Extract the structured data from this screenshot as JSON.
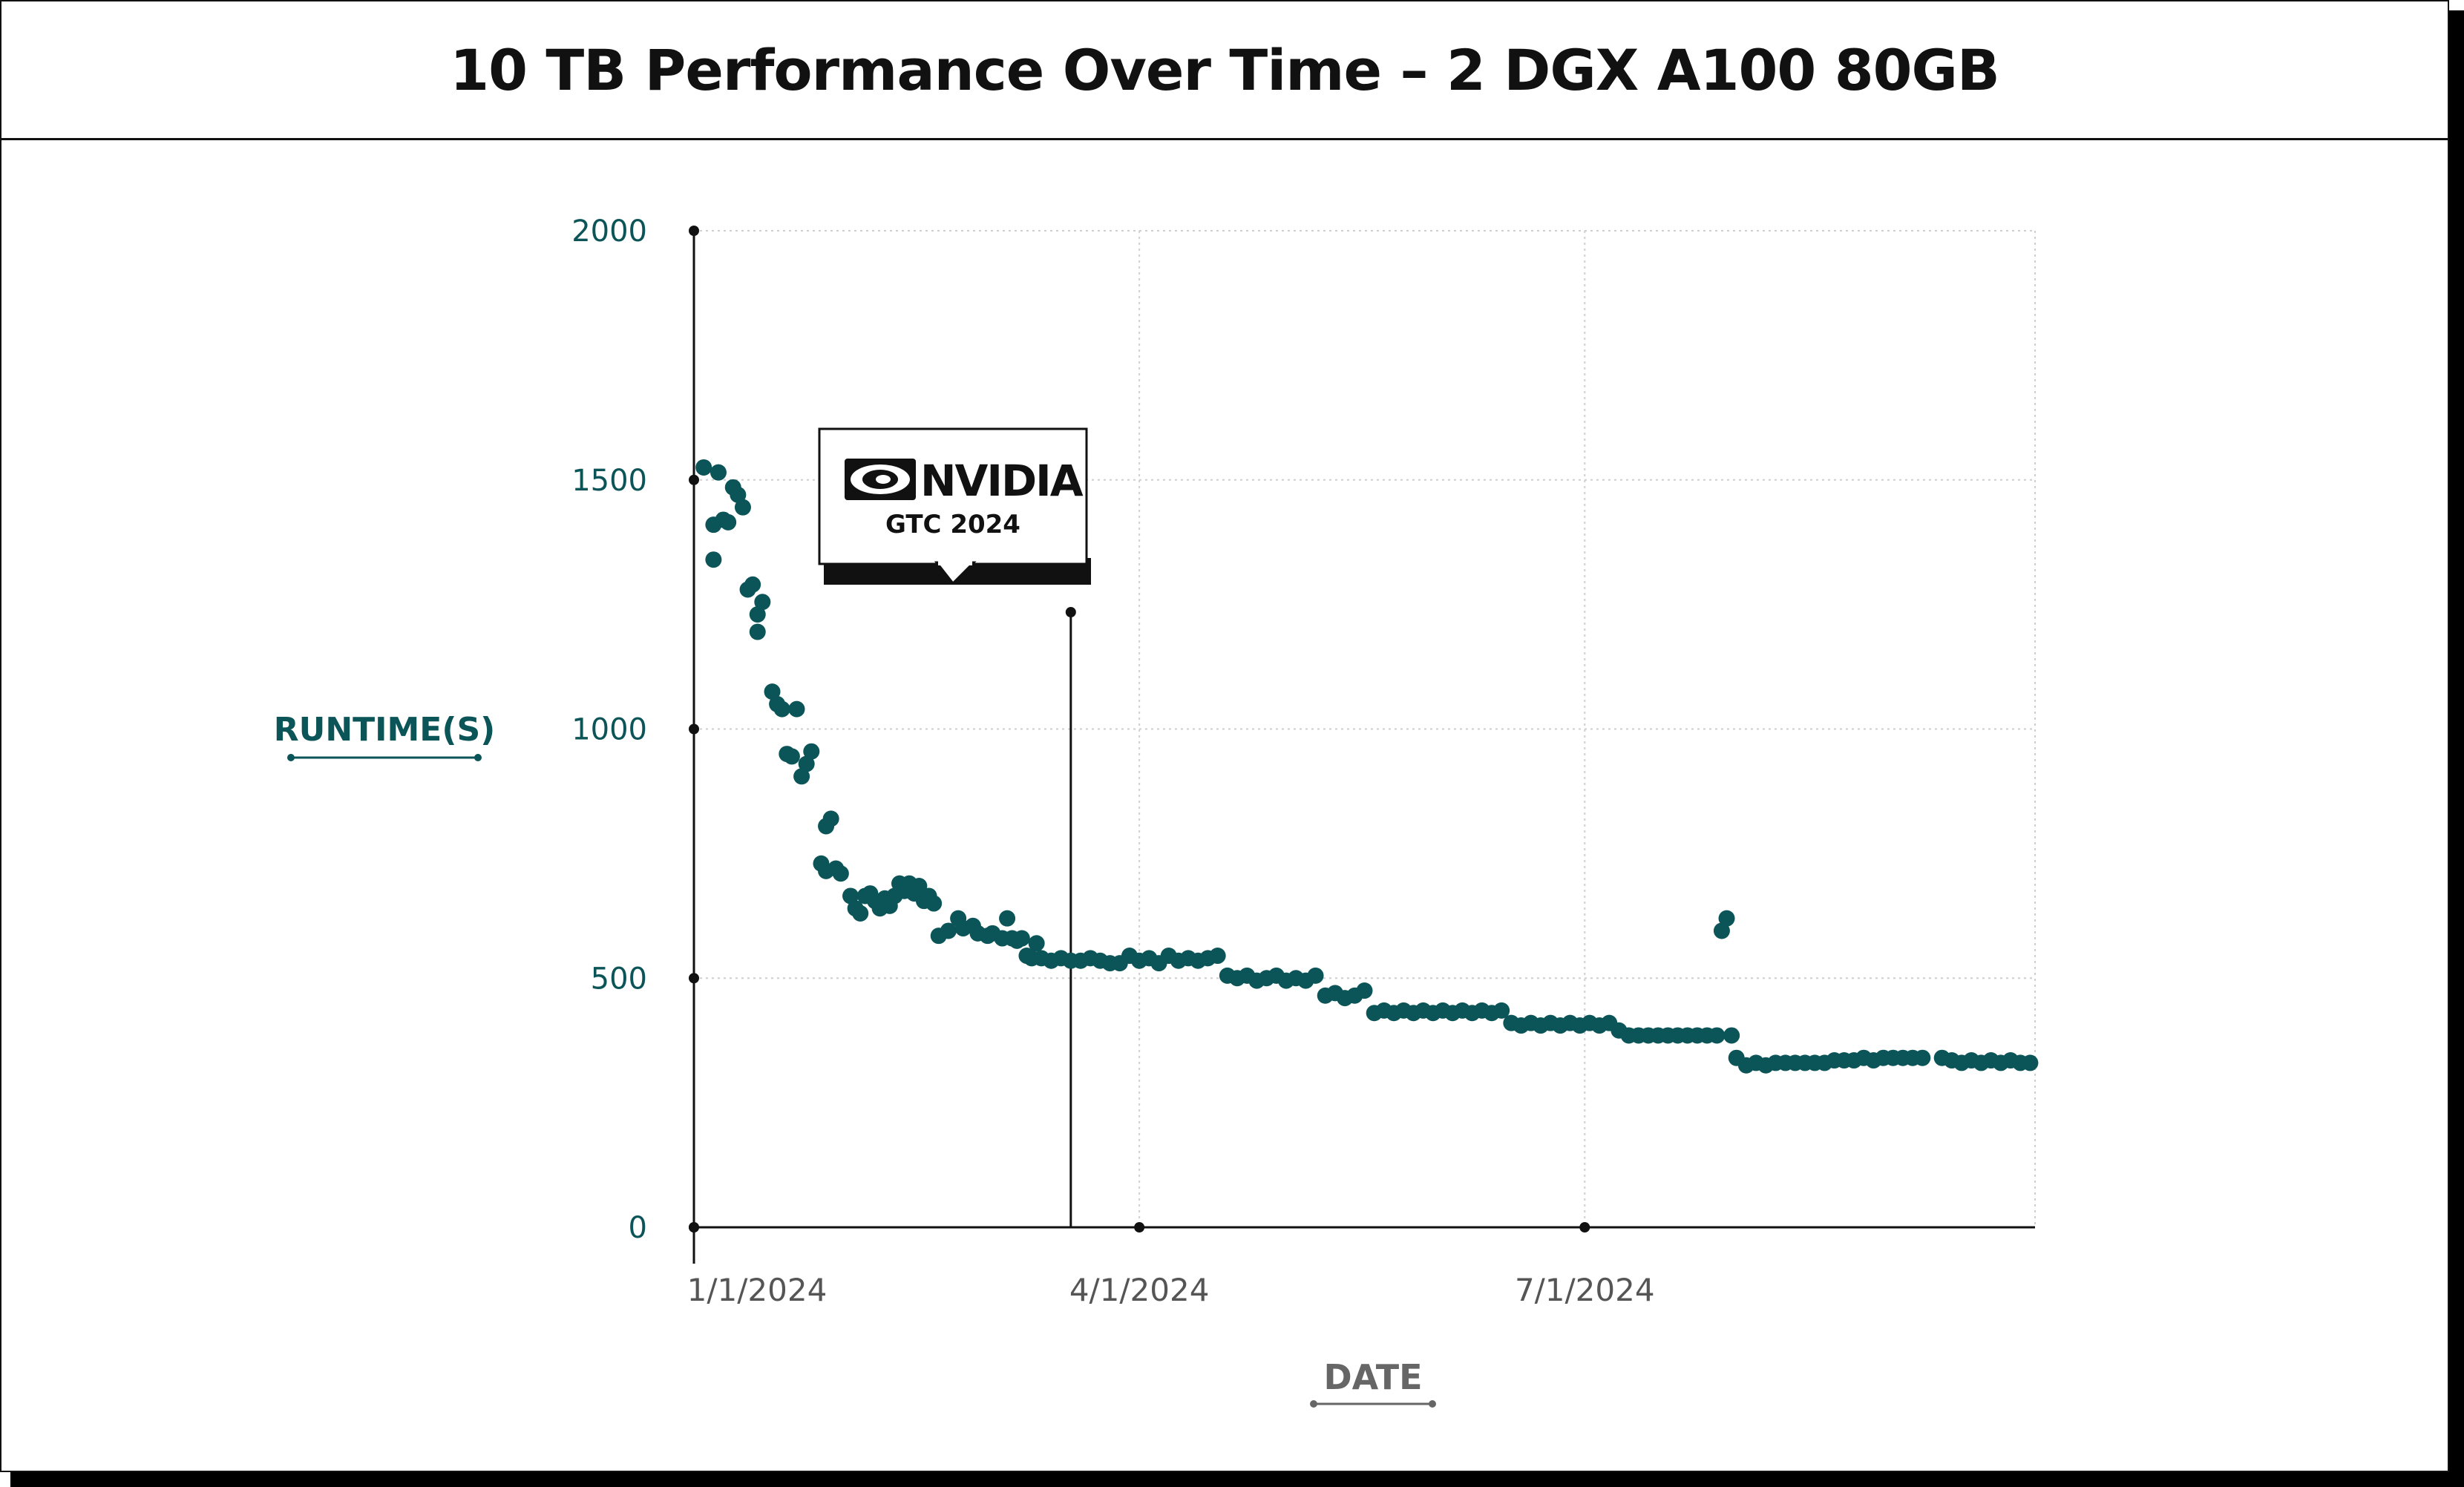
{
  "title": "10 TB Performance Over Time – 2 DGX A100 80GB",
  "annotation": {
    "logo_text": "NVIDIA",
    "event": "GTC 2024",
    "date": "2024-03-18"
  },
  "colors": {
    "series": "#0b5457",
    "axis": "#111111"
  },
  "chart_data": {
    "type": "scatter",
    "title": "10 TB Performance Over Time – 2 DGX A100 80GB",
    "xlabel": "DATE",
    "ylabel": "RUNTIME(S)",
    "xlim": [
      "2024-01-01",
      "2024-10-01"
    ],
    "ylim": [
      0,
      2000
    ],
    "yticks": [
      0,
      500,
      1000,
      1500,
      2000
    ],
    "xticks": [
      "2024-01-01",
      "2024-04-01",
      "2024-07-01"
    ],
    "xtick_labels": [
      "1/1/2024",
      "4/1/2024",
      "7/1/2024"
    ],
    "grid": true,
    "points": [
      [
        "2024-01-03",
        1525
      ],
      [
        "2024-01-05",
        1340
      ],
      [
        "2024-01-05",
        1410
      ],
      [
        "2024-01-06",
        1515
      ],
      [
        "2024-01-07",
        1420
      ],
      [
        "2024-01-08",
        1415
      ],
      [
        "2024-01-09",
        1485
      ],
      [
        "2024-01-10",
        1470
      ],
      [
        "2024-01-11",
        1445
      ],
      [
        "2024-01-12",
        1280
      ],
      [
        "2024-01-13",
        1290
      ],
      [
        "2024-01-14",
        1230
      ],
      [
        "2024-01-14",
        1195
      ],
      [
        "2024-01-15",
        1255
      ],
      [
        "2024-01-17",
        1075
      ],
      [
        "2024-01-18",
        1050
      ],
      [
        "2024-01-19",
        1040
      ],
      [
        "2024-01-20",
        950
      ],
      [
        "2024-01-21",
        945
      ],
      [
        "2024-01-22",
        1040
      ],
      [
        "2024-01-23",
        905
      ],
      [
        "2024-01-24",
        930
      ],
      [
        "2024-01-25",
        955
      ],
      [
        "2024-01-27",
        730
      ],
      [
        "2024-01-28",
        805
      ],
      [
        "2024-01-29",
        820
      ],
      [
        "2024-01-28",
        715
      ],
      [
        "2024-01-30",
        720
      ],
      [
        "2024-01-31",
        710
      ],
      [
        "2024-02-02",
        665
      ],
      [
        "2024-02-03",
        640
      ],
      [
        "2024-02-04",
        630
      ],
      [
        "2024-02-05",
        665
      ],
      [
        "2024-02-06",
        670
      ],
      [
        "2024-02-07",
        655
      ],
      [
        "2024-02-08",
        640
      ],
      [
        "2024-02-09",
        660
      ],
      [
        "2024-02-10",
        645
      ],
      [
        "2024-02-11",
        665
      ],
      [
        "2024-02-12",
        690
      ],
      [
        "2024-02-13",
        675
      ],
      [
        "2024-02-14",
        690
      ],
      [
        "2024-02-15",
        670
      ],
      [
        "2024-02-16",
        685
      ],
      [
        "2024-02-17",
        655
      ],
      [
        "2024-02-18",
        665
      ],
      [
        "2024-02-19",
        650
      ],
      [
        "2024-02-20",
        585
      ],
      [
        "2024-02-22",
        595
      ],
      [
        "2024-02-24",
        620
      ],
      [
        "2024-02-25",
        600
      ],
      [
        "2024-02-27",
        605
      ],
      [
        "2024-02-28",
        590
      ],
      [
        "2024-03-01",
        585
      ],
      [
        "2024-03-02",
        590
      ],
      [
        "2024-03-04",
        580
      ],
      [
        "2024-03-05",
        620
      ],
      [
        "2024-03-06",
        580
      ],
      [
        "2024-03-07",
        575
      ],
      [
        "2024-03-08",
        580
      ],
      [
        "2024-03-09",
        545
      ],
      [
        "2024-03-10",
        540
      ],
      [
        "2024-03-11",
        570
      ],
      [
        "2024-03-12",
        540
      ],
      [
        "2024-03-14",
        535
      ],
      [
        "2024-03-16",
        540
      ],
      [
        "2024-03-18",
        535
      ],
      [
        "2024-03-20",
        535
      ],
      [
        "2024-03-22",
        540
      ],
      [
        "2024-03-24",
        535
      ],
      [
        "2024-03-26",
        530
      ],
      [
        "2024-03-28",
        530
      ],
      [
        "2024-03-30",
        545
      ],
      [
        "2024-04-01",
        535
      ],
      [
        "2024-04-03",
        540
      ],
      [
        "2024-04-05",
        530
      ],
      [
        "2024-04-07",
        545
      ],
      [
        "2024-04-09",
        535
      ],
      [
        "2024-04-11",
        540
      ],
      [
        "2024-04-13",
        535
      ],
      [
        "2024-04-15",
        540
      ],
      [
        "2024-04-17",
        545
      ],
      [
        "2024-04-19",
        505
      ],
      [
        "2024-04-21",
        500
      ],
      [
        "2024-04-23",
        505
      ],
      [
        "2024-04-25",
        495
      ],
      [
        "2024-04-27",
        500
      ],
      [
        "2024-04-29",
        505
      ],
      [
        "2024-05-01",
        495
      ],
      [
        "2024-05-03",
        500
      ],
      [
        "2024-05-05",
        495
      ],
      [
        "2024-05-07",
        505
      ],
      [
        "2024-05-09",
        465
      ],
      [
        "2024-05-11",
        470
      ],
      [
        "2024-05-13",
        460
      ],
      [
        "2024-05-15",
        465
      ],
      [
        "2024-05-17",
        475
      ],
      [
        "2024-05-19",
        430
      ],
      [
        "2024-05-21",
        435
      ],
      [
        "2024-05-23",
        430
      ],
      [
        "2024-05-25",
        435
      ],
      [
        "2024-05-27",
        430
      ],
      [
        "2024-05-29",
        435
      ],
      [
        "2024-05-31",
        430
      ],
      [
        "2024-06-02",
        435
      ],
      [
        "2024-06-04",
        430
      ],
      [
        "2024-06-06",
        435
      ],
      [
        "2024-06-08",
        430
      ],
      [
        "2024-06-10",
        435
      ],
      [
        "2024-06-12",
        430
      ],
      [
        "2024-06-14",
        435
      ],
      [
        "2024-06-16",
        410
      ],
      [
        "2024-06-18",
        405
      ],
      [
        "2024-06-20",
        410
      ],
      [
        "2024-06-22",
        405
      ],
      [
        "2024-06-24",
        410
      ],
      [
        "2024-06-26",
        405
      ],
      [
        "2024-06-28",
        410
      ],
      [
        "2024-06-30",
        405
      ],
      [
        "2024-07-02",
        410
      ],
      [
        "2024-07-04",
        405
      ],
      [
        "2024-07-06",
        410
      ],
      [
        "2024-07-08",
        395
      ],
      [
        "2024-07-10",
        385
      ],
      [
        "2024-07-12",
        385
      ],
      [
        "2024-07-14",
        385
      ],
      [
        "2024-07-16",
        385
      ],
      [
        "2024-07-18",
        385
      ],
      [
        "2024-07-20",
        385
      ],
      [
        "2024-07-22",
        385
      ],
      [
        "2024-07-24",
        385
      ],
      [
        "2024-07-26",
        385
      ],
      [
        "2024-07-28",
        385
      ],
      [
        "2024-07-29",
        595
      ],
      [
        "2024-07-30",
        620
      ],
      [
        "2024-07-31",
        385
      ],
      [
        "2024-08-01",
        340
      ],
      [
        "2024-08-03",
        325
      ],
      [
        "2024-08-05",
        330
      ],
      [
        "2024-08-07",
        325
      ],
      [
        "2024-08-09",
        330
      ],
      [
        "2024-08-11",
        330
      ],
      [
        "2024-08-13",
        330
      ],
      [
        "2024-08-15",
        330
      ],
      [
        "2024-08-17",
        330
      ],
      [
        "2024-08-19",
        330
      ],
      [
        "2024-08-21",
        335
      ],
      [
        "2024-08-23",
        335
      ],
      [
        "2024-08-25",
        335
      ],
      [
        "2024-08-27",
        340
      ],
      [
        "2024-08-29",
        335
      ],
      [
        "2024-08-31",
        340
      ],
      [
        "2024-09-02",
        340
      ],
      [
        "2024-09-04",
        340
      ],
      [
        "2024-09-06",
        340
      ],
      [
        "2024-09-08",
        340
      ],
      [
        "2024-09-12",
        340
      ],
      [
        "2024-09-14",
        335
      ],
      [
        "2024-09-16",
        330
      ],
      [
        "2024-09-18",
        335
      ],
      [
        "2024-09-20",
        330
      ],
      [
        "2024-09-22",
        335
      ],
      [
        "2024-09-24",
        330
      ],
      [
        "2024-09-26",
        335
      ],
      [
        "2024-09-28",
        330
      ],
      [
        "2024-09-30",
        330
      ]
    ]
  }
}
